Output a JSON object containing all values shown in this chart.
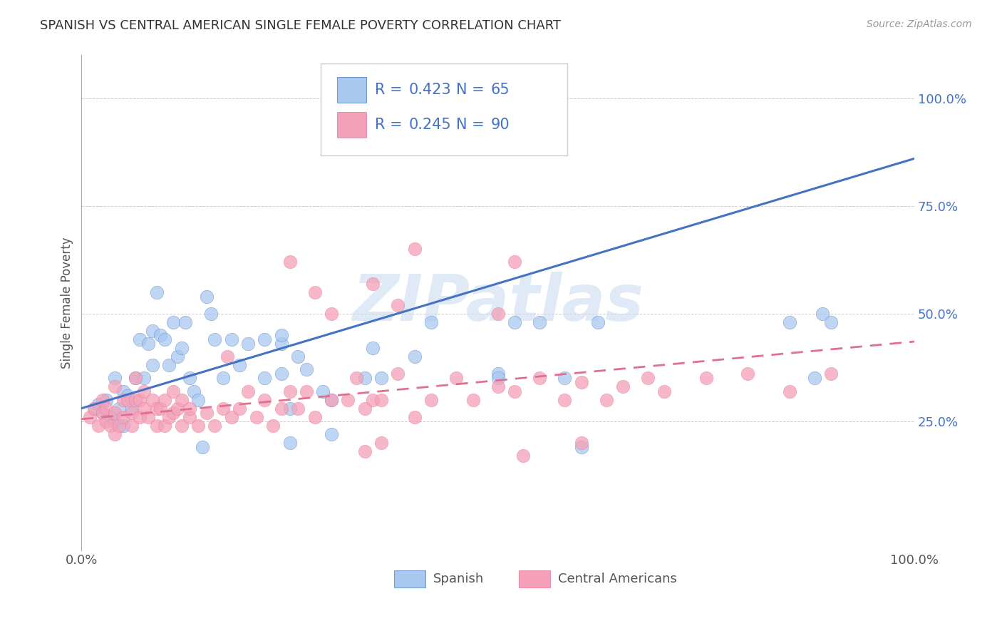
{
  "title": "SPANISH VS CENTRAL AMERICAN SINGLE FEMALE POVERTY CORRELATION CHART",
  "source": "Source: ZipAtlas.com",
  "ylabel": "Single Female Poverty",
  "xlim": [
    0.0,
    1.0
  ],
  "ylim": [
    -0.05,
    1.1
  ],
  "spanish_R": 0.423,
  "spanish_N": 65,
  "central_R": 0.245,
  "central_N": 90,
  "spanish_color": "#A8C8F0",
  "central_color": "#F4A0B8",
  "spanish_line_color": "#4472C4",
  "central_line_color": "#E07090",
  "legend_text_color": "#4472C4",
  "ytick_color": "#4472C4",
  "watermark_text": "ZIPatlas",
  "watermark_color": "#C8D8F0",
  "background_color": "#FFFFFF",
  "grid_color": "#CCCCCC",
  "spanish_line_intercept": 0.28,
  "spanish_line_slope": 0.58,
  "central_line_intercept": 0.255,
  "central_line_slope": 0.18,
  "spanish_x": [
    0.015,
    0.02,
    0.025,
    0.03,
    0.035,
    0.04,
    0.04,
    0.045,
    0.05,
    0.05,
    0.055,
    0.06,
    0.065,
    0.07,
    0.075,
    0.08,
    0.085,
    0.085,
    0.09,
    0.095,
    0.1,
    0.105,
    0.11,
    0.115,
    0.12,
    0.125,
    0.13,
    0.135,
    0.14,
    0.145,
    0.15,
    0.155,
    0.16,
    0.17,
    0.18,
    0.19,
    0.2,
    0.22,
    0.22,
    0.24,
    0.24,
    0.24,
    0.25,
    0.26,
    0.27,
    0.29,
    0.3,
    0.34,
    0.35,
    0.36,
    0.4,
    0.42,
    0.5,
    0.52,
    0.55,
    0.58,
    0.6,
    0.62,
    0.85,
    0.88,
    0.89,
    0.9,
    0.5,
    0.25,
    0.3
  ],
  "spanish_y": [
    0.28,
    0.29,
    0.27,
    0.3,
    0.26,
    0.25,
    0.35,
    0.28,
    0.32,
    0.24,
    0.31,
    0.28,
    0.35,
    0.44,
    0.35,
    0.43,
    0.38,
    0.46,
    0.55,
    0.45,
    0.44,
    0.38,
    0.48,
    0.4,
    0.42,
    0.48,
    0.35,
    0.32,
    0.3,
    0.19,
    0.54,
    0.5,
    0.44,
    0.35,
    0.44,
    0.38,
    0.43,
    0.35,
    0.44,
    0.43,
    0.45,
    0.36,
    0.28,
    0.4,
    0.37,
    0.32,
    0.3,
    0.35,
    0.42,
    0.35,
    0.4,
    0.48,
    0.36,
    0.48,
    0.48,
    0.35,
    0.19,
    0.48,
    0.48,
    0.35,
    0.5,
    0.48,
    0.35,
    0.2,
    0.22
  ],
  "central_x": [
    0.01,
    0.015,
    0.02,
    0.025,
    0.025,
    0.03,
    0.03,
    0.035,
    0.04,
    0.04,
    0.04,
    0.045,
    0.05,
    0.05,
    0.055,
    0.06,
    0.06,
    0.065,
    0.065,
    0.07,
    0.07,
    0.075,
    0.075,
    0.08,
    0.085,
    0.09,
    0.09,
    0.095,
    0.1,
    0.1,
    0.105,
    0.11,
    0.11,
    0.115,
    0.12,
    0.12,
    0.13,
    0.13,
    0.14,
    0.15,
    0.16,
    0.17,
    0.175,
    0.18,
    0.19,
    0.2,
    0.21,
    0.22,
    0.23,
    0.24,
    0.25,
    0.26,
    0.27,
    0.28,
    0.3,
    0.32,
    0.33,
    0.34,
    0.35,
    0.36,
    0.38,
    0.4,
    0.42,
    0.45,
    0.47,
    0.5,
    0.52,
    0.55,
    0.58,
    0.6,
    0.63,
    0.65,
    0.68,
    0.7,
    0.75,
    0.8,
    0.85,
    0.9,
    0.52,
    0.34,
    0.36,
    0.25,
    0.28,
    0.3,
    0.35,
    0.38,
    0.4,
    0.5,
    0.53,
    0.6
  ],
  "central_y": [
    0.26,
    0.28,
    0.24,
    0.27,
    0.3,
    0.25,
    0.28,
    0.24,
    0.22,
    0.27,
    0.33,
    0.24,
    0.26,
    0.3,
    0.3,
    0.24,
    0.27,
    0.3,
    0.35,
    0.26,
    0.3,
    0.28,
    0.32,
    0.26,
    0.3,
    0.24,
    0.28,
    0.28,
    0.24,
    0.3,
    0.26,
    0.27,
    0.32,
    0.28,
    0.24,
    0.3,
    0.26,
    0.28,
    0.24,
    0.27,
    0.24,
    0.28,
    0.4,
    0.26,
    0.28,
    0.32,
    0.26,
    0.3,
    0.24,
    0.28,
    0.32,
    0.28,
    0.32,
    0.26,
    0.3,
    0.3,
    0.35,
    0.28,
    0.3,
    0.3,
    0.36,
    0.26,
    0.3,
    0.35,
    0.3,
    0.33,
    0.32,
    0.35,
    0.3,
    0.34,
    0.3,
    0.33,
    0.35,
    0.32,
    0.35,
    0.36,
    0.32,
    0.36,
    0.62,
    0.18,
    0.2,
    0.62,
    0.55,
    0.5,
    0.57,
    0.52,
    0.65,
    0.5,
    0.17,
    0.2
  ]
}
